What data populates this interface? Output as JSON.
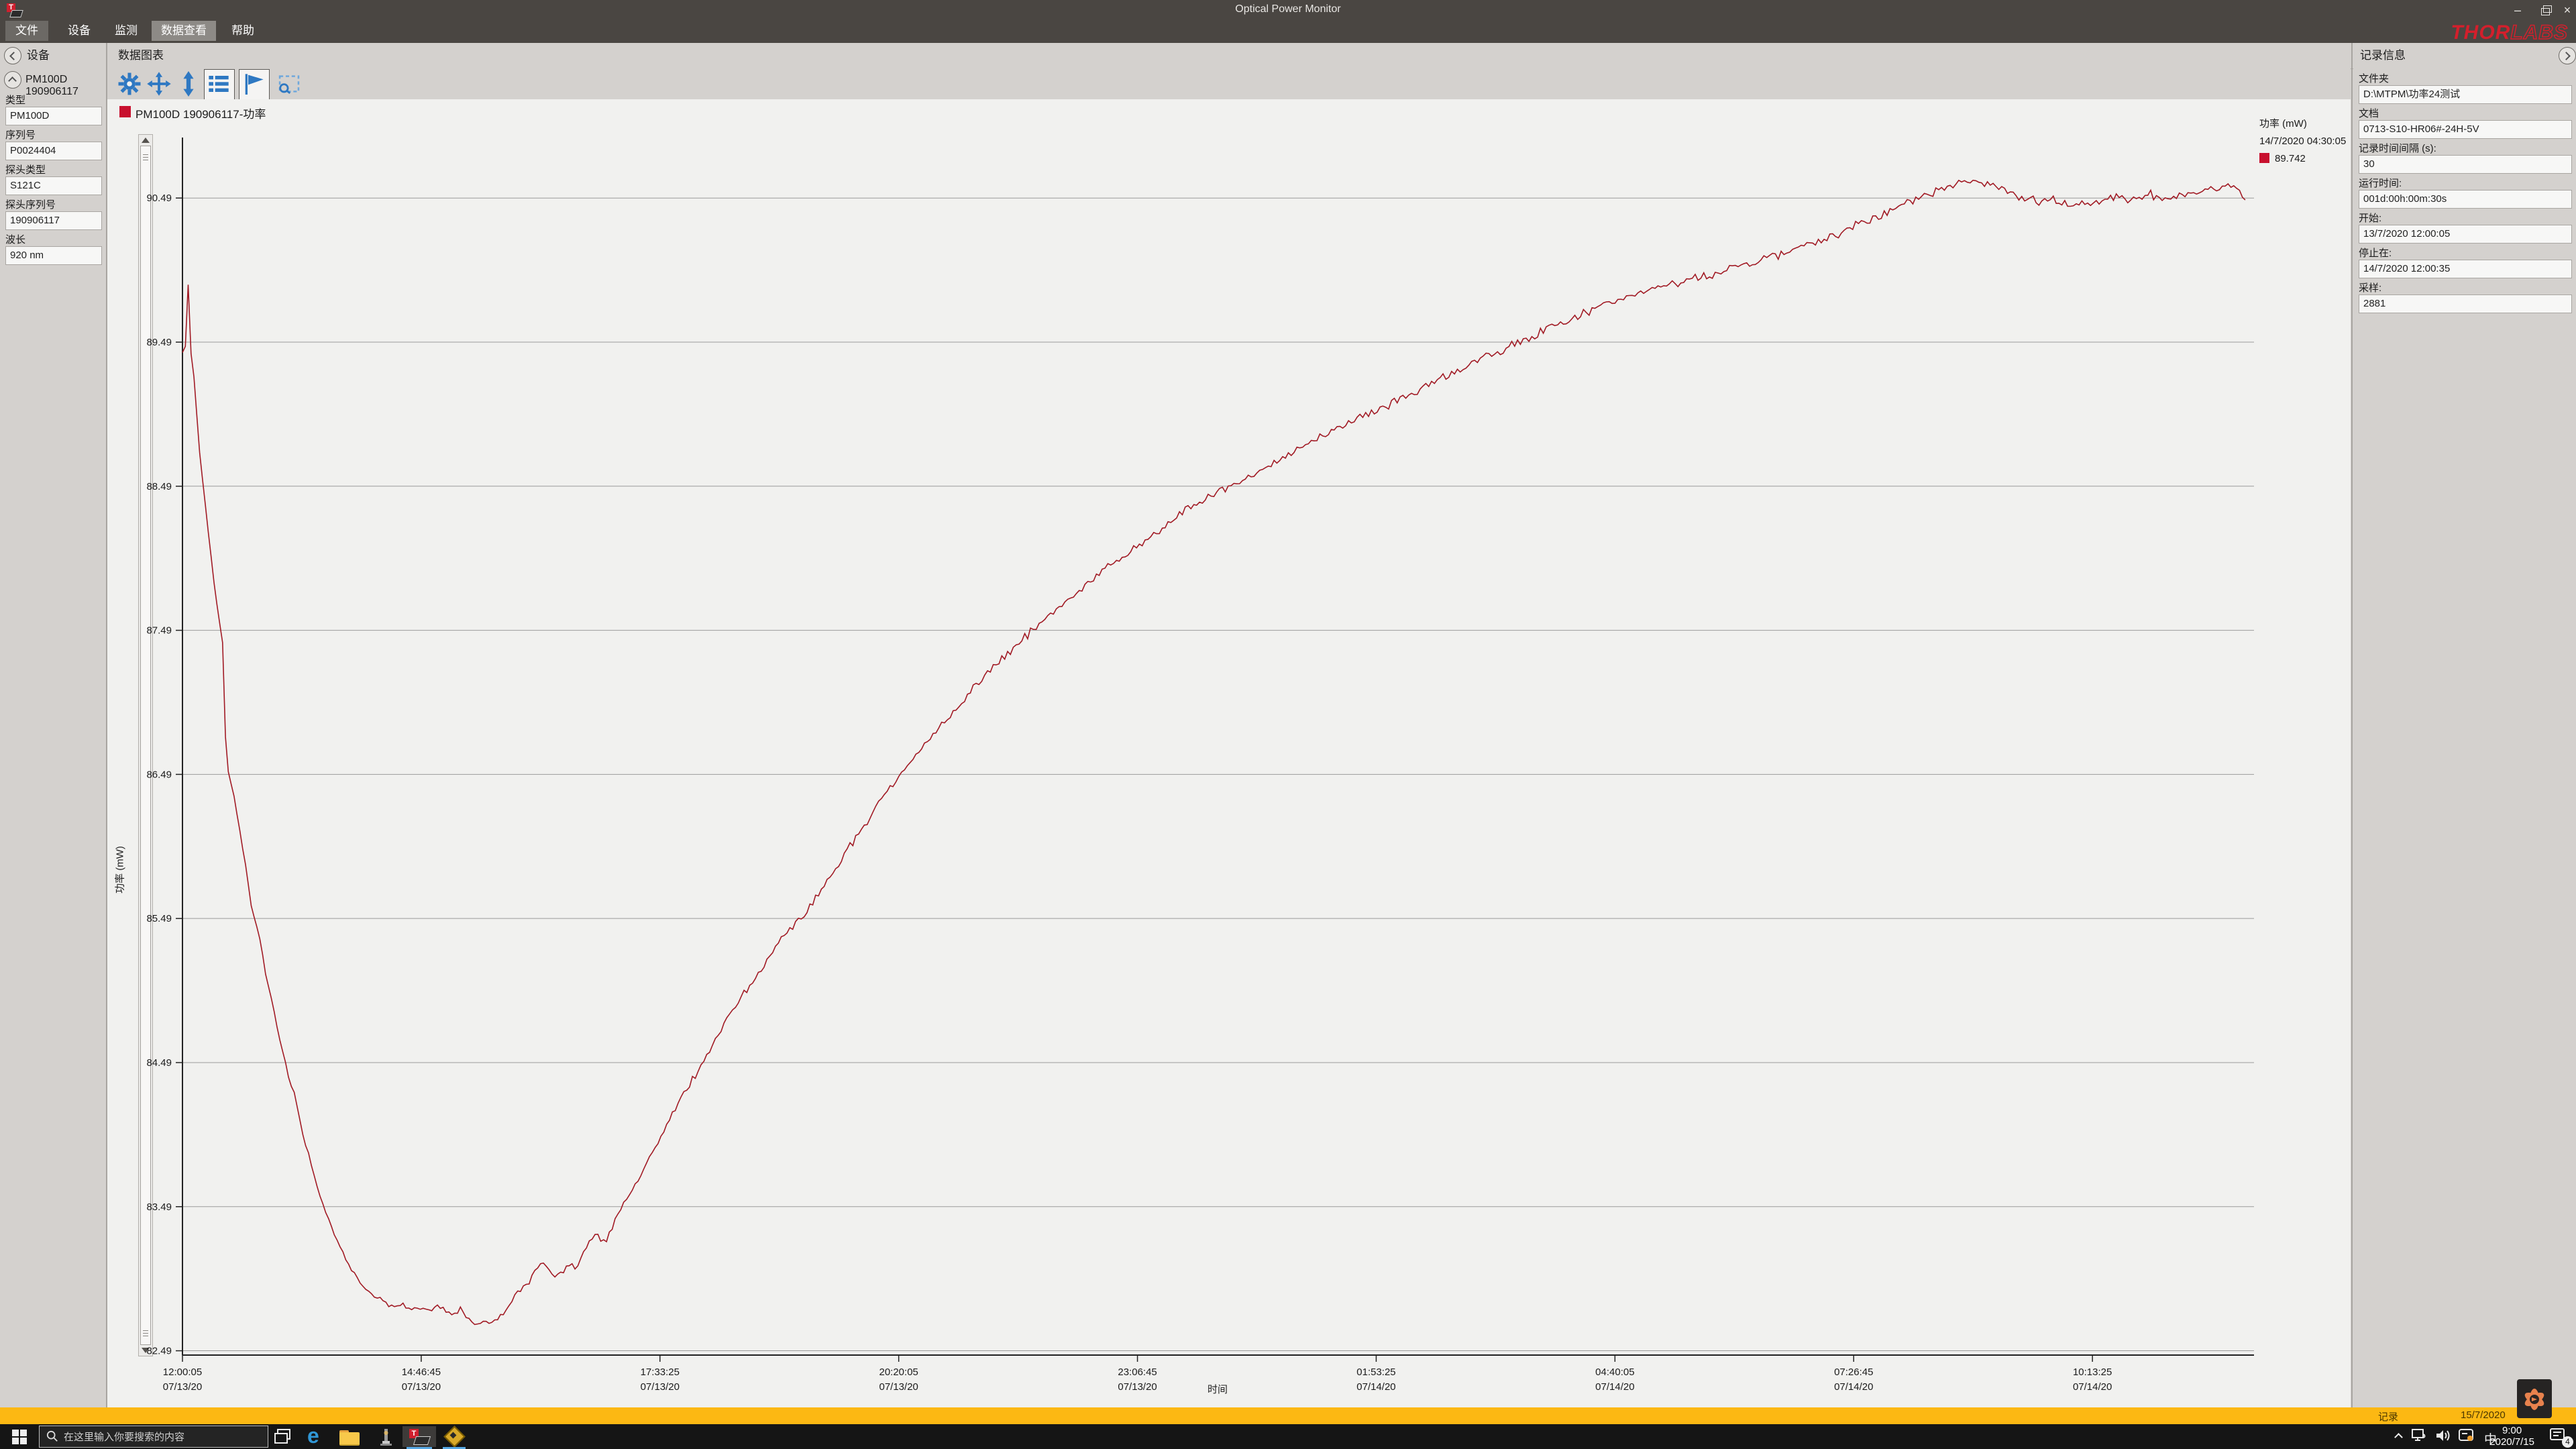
{
  "window": {
    "title": "Optical Power Monitor",
    "logo_thor": "THOR",
    "logo_labs": "LABS",
    "minimize_glyph": "–",
    "close_glyph": "×"
  },
  "menu": {
    "items": [
      {
        "label": "文件"
      },
      {
        "label": "设备"
      },
      {
        "label": "监测"
      },
      {
        "label": "数据查看"
      },
      {
        "label": "帮助"
      }
    ]
  },
  "left_panel": {
    "header": "设备",
    "device_header": "PM100D 190906117",
    "fields": [
      {
        "label": "类型",
        "value": "PM100D"
      },
      {
        "label": "序列号",
        "value": "P0024404"
      },
      {
        "label": "探头类型",
        "value": "S121C"
      },
      {
        "label": "探头序列号",
        "value": "190906117"
      },
      {
        "label": "波长",
        "value": "920 nm"
      }
    ]
  },
  "center": {
    "header": "数据图表",
    "tab_label": "PM100D 190906117-功率",
    "toolbar_icons": [
      "settings",
      "pan",
      "vertical-autoscale",
      "legend-toggle",
      "flag-marker",
      "zoom-select"
    ]
  },
  "legend": {
    "title": "功率 (mW)",
    "timestamp": "14/7/2020 04:30:05",
    "value": "89.742",
    "swatch_color": "#c8102e"
  },
  "right_panel": {
    "header": "记录信息",
    "fields": [
      {
        "label": "文件夹",
        "value": "D:\\MTPM\\功率24测试"
      },
      {
        "label": "文档",
        "value": "0713-S10-HR06#-24H-5V"
      },
      {
        "label": "记录时间间隔 (s):",
        "value": "30"
      },
      {
        "label": "运行时间:",
        "value": "001d:00h:00m:30s"
      },
      {
        "label": "开始:",
        "value": "13/7/2020 12:00:05"
      },
      {
        "label": "停止在:",
        "value": "14/7/2020 12:00:35"
      },
      {
        "label": "采样:",
        "value": "2881"
      }
    ]
  },
  "status_bar": {
    "record_label": "记录",
    "date": "15/7/2020",
    "color": "#fcb813"
  },
  "taskbar": {
    "search_placeholder": "在这里输入你要搜索的内容",
    "ime_indicator": "中",
    "clock_time": "9:00",
    "clock_date": "2020/7/15",
    "badge_count": "4"
  },
  "chart_data": {
    "type": "line",
    "title": "PM100D 190906117-功率",
    "xlabel": "时间",
    "ylabel": "功率 (mW)",
    "grid": "horizontal",
    "ylim": [
      82.46,
      90.91
    ],
    "xlim_seconds": [
      0,
      86430
    ],
    "y_ticks": [
      90.49,
      89.49,
      88.49,
      87.49,
      86.49,
      85.49,
      84.49,
      83.49,
      82.49
    ],
    "x_ticks": [
      {
        "t": 0,
        "time": "12:00:05",
        "date": "07/13/20"
      },
      {
        "t": 10000,
        "time": "14:46:45",
        "date": "07/13/20"
      },
      {
        "t": 20000,
        "time": "17:33:25",
        "date": "07/13/20"
      },
      {
        "t": 30000,
        "time": "20:20:05",
        "date": "07/13/20"
      },
      {
        "t": 40000,
        "time": "23:06:45",
        "date": "07/13/20"
      },
      {
        "t": 50000,
        "time": "01:53:25",
        "date": "07/14/20"
      },
      {
        "t": 60000,
        "time": "04:40:05",
        "date": "07/14/20"
      },
      {
        "t": 70000,
        "time": "07:26:45",
        "date": "07/14/20"
      },
      {
        "t": 80000,
        "time": "10:13:25",
        "date": "07/14/20"
      }
    ],
    "series": [
      {
        "name": "PM100D 190906117-功率",
        "color": "#a11a24",
        "sample_interval_s": 30,
        "samples": 2881,
        "points": [
          [
            0,
            89.42,
            0.004
          ],
          [
            130,
            89.46,
            0.004
          ],
          [
            180,
            89.92,
            0.003
          ],
          [
            260,
            89.88,
            0.003
          ],
          [
            330,
            89.45,
            0.008
          ],
          [
            500,
            89.22,
            0.01
          ],
          [
            700,
            88.75,
            0.01
          ],
          [
            900,
            88.45,
            0.01
          ],
          [
            1100,
            88.15,
            0.009
          ],
          [
            1300,
            87.85,
            0.009
          ],
          [
            1500,
            87.6,
            0.008
          ],
          [
            1650,
            87.45,
            0.006
          ],
          [
            1750,
            87.3,
            0.005
          ],
          [
            1800,
            86.75,
            0.004
          ],
          [
            1870,
            86.55,
            0.006
          ],
          [
            2000,
            86.45,
            0.008
          ],
          [
            2150,
            86.35,
            0.008
          ],
          [
            2300,
            86.2,
            0.009
          ],
          [
            2500,
            86.0,
            0.009
          ],
          [
            2700,
            85.8,
            0.009
          ],
          [
            2900,
            85.55,
            0.01
          ],
          [
            3100,
            85.45,
            0.009
          ],
          [
            3300,
            85.3,
            0.01
          ],
          [
            3500,
            85.08,
            0.01
          ],
          [
            3700,
            84.95,
            0.01
          ],
          [
            3900,
            84.8,
            0.01
          ],
          [
            4100,
            84.62,
            0.01
          ],
          [
            4300,
            84.5,
            0.01
          ],
          [
            4500,
            84.35,
            0.011
          ],
          [
            4700,
            84.28,
            0.01
          ],
          [
            4900,
            84.1,
            0.011
          ],
          [
            5100,
            83.95,
            0.011
          ],
          [
            5300,
            83.85,
            0.011
          ],
          [
            5500,
            83.72,
            0.011
          ],
          [
            5700,
            83.6,
            0.011
          ],
          [
            5900,
            83.5,
            0.011
          ],
          [
            6100,
            83.42,
            0.012
          ],
          [
            6300,
            83.33,
            0.012
          ],
          [
            6500,
            83.25,
            0.012
          ],
          [
            6700,
            83.18,
            0.012
          ],
          [
            6900,
            83.1,
            0.012
          ],
          [
            7100,
            83.05,
            0.012
          ],
          [
            7300,
            83.0,
            0.013
          ],
          [
            7500,
            82.95,
            0.013
          ],
          [
            7700,
            82.92,
            0.013
          ],
          [
            7900,
            82.88,
            0.014
          ],
          [
            8100,
            82.86,
            0.015
          ],
          [
            8400,
            82.84,
            0.02
          ],
          [
            8800,
            82.8,
            0.025
          ],
          [
            9200,
            82.82,
            0.025
          ],
          [
            9600,
            82.78,
            0.025
          ],
          [
            10000,
            82.8,
            0.026
          ],
          [
            10400,
            82.76,
            0.026
          ],
          [
            10800,
            82.8,
            0.026
          ],
          [
            11200,
            82.74,
            0.026
          ],
          [
            11600,
            82.78,
            0.026
          ],
          [
            12000,
            82.71,
            0.026
          ],
          [
            12300,
            82.67,
            0.024
          ],
          [
            12600,
            82.71,
            0.024
          ],
          [
            12900,
            82.67,
            0.024
          ],
          [
            13200,
            82.7,
            0.024
          ],
          [
            13500,
            82.76,
            0.024
          ],
          [
            13800,
            82.84,
            0.024
          ],
          [
            14100,
            82.9,
            0.024
          ],
          [
            14400,
            82.94,
            0.024
          ],
          [
            14700,
            83.02,
            0.024
          ],
          [
            15000,
            83.1,
            0.024
          ],
          [
            15300,
            83.08,
            0.024
          ],
          [
            15600,
            82.99,
            0.024
          ],
          [
            15900,
            83.03,
            0.024
          ],
          [
            16200,
            83.1,
            0.025
          ],
          [
            16550,
            83.06,
            0.025
          ],
          [
            16900,
            83.2,
            0.026
          ],
          [
            17300,
            83.3,
            0.026
          ],
          [
            17700,
            83.24,
            0.026
          ],
          [
            18100,
            83.38,
            0.027
          ],
          [
            18600,
            83.55,
            0.027
          ],
          [
            19100,
            83.68,
            0.027
          ],
          [
            19600,
            83.85,
            0.028
          ],
          [
            20200,
            84.02,
            0.028
          ],
          [
            20800,
            84.22,
            0.028
          ],
          [
            21400,
            84.38,
            0.028
          ],
          [
            22000,
            84.55,
            0.029
          ],
          [
            22700,
            84.76,
            0.029
          ],
          [
            23400,
            84.95,
            0.029
          ],
          [
            24100,
            85.1,
            0.03
          ],
          [
            24800,
            85.28,
            0.03
          ],
          [
            25500,
            85.42,
            0.03
          ],
          [
            26200,
            85.55,
            0.03
          ],
          [
            27000,
            85.75,
            0.031
          ],
          [
            27800,
            85.95,
            0.031
          ],
          [
            28600,
            86.15,
            0.031
          ],
          [
            29400,
            86.35,
            0.031
          ],
          [
            30100,
            86.5,
            0.031
          ],
          [
            30900,
            86.66,
            0.032
          ],
          [
            31700,
            86.82,
            0.032
          ],
          [
            32500,
            86.96,
            0.032
          ],
          [
            33300,
            87.12,
            0.032
          ],
          [
            34100,
            87.25,
            0.032
          ],
          [
            35000,
            87.4,
            0.032
          ],
          [
            35800,
            87.52,
            0.033
          ],
          [
            36700,
            87.64,
            0.033
          ],
          [
            37600,
            87.77,
            0.033
          ],
          [
            38500,
            87.9,
            0.033
          ],
          [
            39400,
            88.0,
            0.033
          ],
          [
            40300,
            88.12,
            0.033
          ],
          [
            41200,
            88.22,
            0.034
          ],
          [
            42100,
            88.33,
            0.034
          ],
          [
            43100,
            88.43,
            0.034
          ],
          [
            44300,
            88.52,
            0.034
          ],
          [
            45500,
            88.63,
            0.034
          ],
          [
            46700,
            88.74,
            0.034
          ],
          [
            48000,
            88.86,
            0.034
          ],
          [
            49300,
            88.97,
            0.034
          ],
          [
            50600,
            89.06,
            0.034
          ],
          [
            52000,
            89.18,
            0.035
          ],
          [
            53500,
            89.3,
            0.035
          ],
          [
            55000,
            89.42,
            0.035
          ],
          [
            56400,
            89.52,
            0.035
          ],
          [
            58000,
            89.64,
            0.035
          ],
          [
            59400,
            89.74,
            0.035
          ],
          [
            61000,
            89.83,
            0.036
          ],
          [
            62600,
            89.9,
            0.036
          ],
          [
            64200,
            89.97,
            0.036
          ],
          [
            65800,
            90.04,
            0.036
          ],
          [
            67400,
            90.13,
            0.037
          ],
          [
            69000,
            90.22,
            0.037
          ],
          [
            70400,
            90.32,
            0.037
          ],
          [
            71800,
            90.42,
            0.037
          ],
          [
            73000,
            90.51,
            0.037
          ],
          [
            74100,
            90.58,
            0.036
          ],
          [
            75100,
            90.62,
            0.036
          ],
          [
            76000,
            90.57,
            0.036
          ],
          [
            76800,
            90.51,
            0.036
          ],
          [
            77600,
            90.47,
            0.037
          ],
          [
            78400,
            90.49,
            0.038
          ],
          [
            79200,
            90.43,
            0.038
          ],
          [
            80000,
            90.46,
            0.038
          ],
          [
            80800,
            90.5,
            0.038
          ],
          [
            81600,
            90.47,
            0.038
          ],
          [
            82400,
            90.52,
            0.038
          ],
          [
            83200,
            90.49,
            0.038
          ],
          [
            84000,
            90.53,
            0.038
          ],
          [
            84800,
            90.55,
            0.038
          ],
          [
            85500,
            90.58,
            0.037
          ],
          [
            86000,
            90.59,
            0.036
          ],
          [
            86250,
            90.52,
            0.03
          ],
          [
            86430,
            90.45,
            0.02
          ]
        ]
      }
    ]
  }
}
